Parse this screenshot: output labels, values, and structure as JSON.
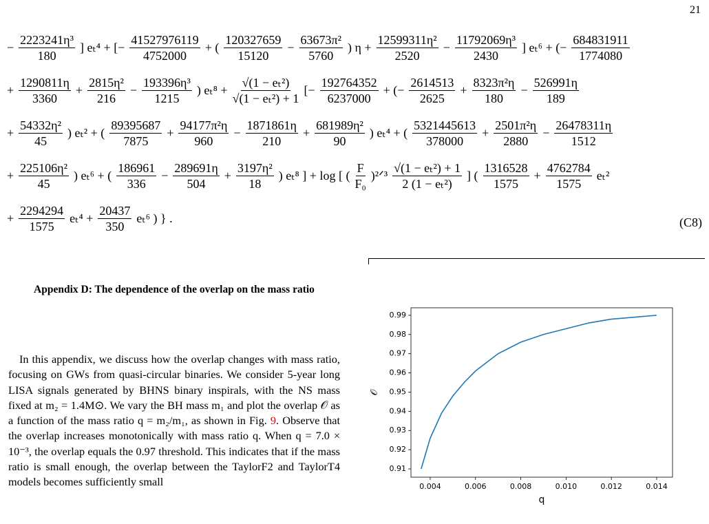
{
  "page_number": "21",
  "equation": {
    "label": "(C8)",
    "lines": [
      [
        "−",
        {
          "n": "2223241η³",
          "d": "180"
        },
        "] eₜ⁴ + [−",
        {
          "n": "41527976119",
          "d": "4752000"
        },
        "+ (",
        {
          "n": "120327659",
          "d": "15120"
        },
        "−",
        {
          "n": "63673π²",
          "d": "5760"
        },
        ") η +",
        {
          "n": "12599311η²",
          "d": "2520"
        },
        "−",
        {
          "n": "11792069η³",
          "d": "2430"
        },
        "] eₜ⁶ + (−",
        {
          "n": "684831911",
          "d": "1774080"
        }
      ],
      [
        "+",
        {
          "n": "1290811η",
          "d": "3360"
        },
        "+",
        {
          "n": "2815η²",
          "d": "216"
        },
        "−",
        {
          "n": "193396η³",
          "d": "1215"
        },
        ") eₜ⁸ +",
        {
          "n": "√(1 − eₜ²)",
          "d": "√(1 − eₜ²) + 1"
        },
        "[−",
        {
          "n": "192764352",
          "d": "6237000"
        },
        "+ (−",
        {
          "n": "2614513",
          "d": "2625"
        },
        "+",
        {
          "n": "8323π²η",
          "d": "180"
        },
        "−",
        {
          "n": "526991η",
          "d": "189"
        }
      ],
      [
        "+",
        {
          "n": "54332η²",
          "d": "45"
        },
        ") eₜ² + (",
        {
          "n": "89395687",
          "d": "7875"
        },
        "+",
        {
          "n": "94177π²η",
          "d": "960"
        },
        "−",
        {
          "n": "1871861η",
          "d": "210"
        },
        "+",
        {
          "n": "681989η²",
          "d": "90"
        },
        ") eₜ⁴ + (",
        {
          "n": "5321445613",
          "d": "378000"
        },
        "+",
        {
          "n": "2501π²η",
          "d": "2880"
        },
        "−",
        {
          "n": "26478311η",
          "d": "1512"
        }
      ],
      [
        "+",
        {
          "n": "225106η²",
          "d": "45"
        },
        ") eₜ⁶ + (",
        {
          "n": "186961",
          "d": "336"
        },
        "−",
        {
          "n": "289691η",
          "d": "504"
        },
        "+",
        {
          "n": "3197η²",
          "d": "18"
        },
        ") eₜ⁸ ] + log [ (",
        {
          "n": "F",
          "d": "F₀"
        },
        ")²ᐟ³",
        {
          "n": "√(1 − eₜ²) + 1",
          "d": "2 (1 − eₜ²)"
        },
        "] (",
        {
          "n": "1316528",
          "d": "1575"
        },
        "+",
        {
          "n": "4762784",
          "d": "1575"
        },
        "eₜ²"
      ],
      [
        "+",
        {
          "n": "2294294",
          "d": "1575"
        },
        "eₜ⁴ +",
        {
          "n": "20437",
          "d": "350"
        },
        "eₜ⁶ ) } ."
      ]
    ]
  },
  "section_title": "Appendix D: The dependence of the overlap on the mass ratio",
  "paragraph": [
    "In this appendix, we discuss how the overlap changes with mass ratio, focusing on GWs from quasi-circular binaries. We consider 5-year long LISA signals generated by BHNS binary inspirals, with the NS mass fixed at m₂ = 1.4M⊙. We vary the BH mass m₁ and plot the overlap 𝒪 as a function of the mass ratio q = m₂/m₁, as shown in Fig. ",
    "9",
    ". Observe that the overlap increases monotonically with mass ratio q. When q = 7.0 × 10⁻³, the overlap equals the 0.97 threshold. This indicates that if the mass ratio is small enough, the overlap between the TaylorF2 and TaylorT4 models becomes sufficiently small"
  ],
  "chart_data": {
    "type": "line",
    "xlabel": "q",
    "ylabel": "𝒪",
    "x": [
      0.0036,
      0.004,
      0.0045,
      0.005,
      0.0055,
      0.006,
      0.007,
      0.008,
      0.009,
      0.01,
      0.011,
      0.012,
      0.013,
      0.014
    ],
    "series": [
      {
        "color": "#1f77b4",
        "values": [
          0.91,
          0.926,
          0.939,
          0.948,
          0.955,
          0.961,
          0.97,
          0.976,
          0.98,
          0.983,
          0.986,
          0.988,
          0.989,
          0.99
        ]
      }
    ],
    "xlim": [
      0.00315,
      0.0147
    ],
    "ylim": [
      0.9057,
      0.9939
    ],
    "xticks": [
      0.004,
      0.006,
      0.008,
      {
        "value": 0.01,
        "label": "0.010"
      },
      0.012,
      0.014
    ],
    "yticks": [
      0.91,
      0.92,
      0.93,
      0.94,
      0.95,
      0.96,
      0.97,
      0.98,
      0.99
    ]
  }
}
